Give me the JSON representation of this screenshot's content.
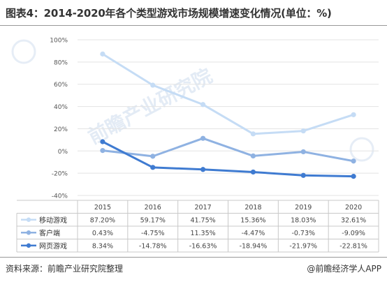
{
  "title": "图表4：2014-2020年各个类型游戏市场规模增速变化情况(单位：%)",
  "source": "资料来源：前瞻产业研究院整理",
  "brand": "@前瞻经济学人APP",
  "watermark": "前瞻产业研究院",
  "chart_data": {
    "type": "line",
    "categories": [
      "2015",
      "2016",
      "2017",
      "2018",
      "2019",
      "2020"
    ],
    "ylim": [
      -40,
      100
    ],
    "yticks": [
      -40,
      -20,
      0,
      20,
      40,
      60,
      80,
      100
    ],
    "ytick_labels": [
      "-40%",
      "-20%",
      "0%",
      "20%",
      "40%",
      "60%",
      "80%",
      "100%"
    ],
    "grid": true,
    "legend": "table-below",
    "series": [
      {
        "name": "移动游戏",
        "color": "#c5dcf5",
        "values": [
          87.2,
          59.17,
          41.75,
          15.36,
          18.03,
          32.61
        ],
        "labels": [
          "87.20%",
          "59.17%",
          "41.75%",
          "15.36%",
          "18.03%",
          "32.61%"
        ]
      },
      {
        "name": "客户端",
        "color": "#8fb2e2",
        "values": [
          0.43,
          -4.75,
          11.35,
          -4.47,
          -0.73,
          -9.09
        ],
        "labels": [
          "0.43%",
          "-4.75%",
          "11.35%",
          "-4.47%",
          "-0.73%",
          "-9.09%"
        ]
      },
      {
        "name": "网页游戏",
        "color": "#3f7bd1",
        "values": [
          8.34,
          -14.78,
          -16.63,
          -18.94,
          -21.97,
          -22.81
        ],
        "labels": [
          "8.34%",
          "-14.78%",
          "-16.63%",
          "-18.94%",
          "-21.97%",
          "-22.81%"
        ]
      }
    ]
  }
}
